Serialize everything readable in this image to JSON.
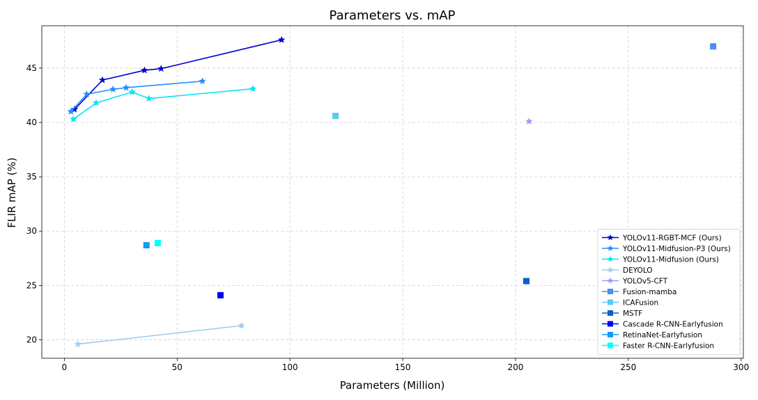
{
  "chart_data": {
    "type": "scatter",
    "title": "Parameters vs. mAP",
    "xlabel": "Parameters (Million)",
    "ylabel": "FLIR mAP (%)",
    "xlim": [
      -10,
      301
    ],
    "ylim": [
      18.3,
      48.9
    ],
    "xticks": [
      0,
      50,
      100,
      150,
      200,
      250,
      300
    ],
    "yticks": [
      20,
      25,
      30,
      35,
      40,
      45
    ],
    "grid": true,
    "legend_position": "lower-right",
    "series": [
      {
        "name": "YOLOv11-RGBT-MCF (Ours)",
        "color": "#0000cd",
        "marker": "star",
        "line": true,
        "x": [
          4.5,
          16.9,
          35.5,
          42.9,
          96.3
        ],
        "y": [
          41.2,
          43.9,
          44.8,
          44.95,
          47.6
        ]
      },
      {
        "name": "YOLOv11-Midfusion-P3 (Ours)",
        "color": "#1e90ff",
        "marker": "star",
        "line": true,
        "x": [
          2.9,
          9.9,
          21.6,
          27.4,
          61.2
        ],
        "y": [
          41.0,
          42.6,
          43.05,
          43.2,
          43.8
        ]
      },
      {
        "name": "YOLOv11-Midfusion (Ours)",
        "color": "#00e5ee",
        "marker": "star",
        "line": true,
        "x": [
          4.0,
          14.1,
          30.1,
          37.5,
          83.6
        ],
        "y": [
          40.3,
          41.8,
          42.8,
          42.2,
          43.1
        ]
      },
      {
        "name": "DEYOLO",
        "color": "#9ecbee",
        "marker": "star",
        "line": true,
        "x": [
          6.0,
          78.5
        ],
        "y": [
          19.6,
          21.3
        ]
      },
      {
        "name": "YOLOv5-CFT",
        "color": "#9a9aff",
        "marker": "star",
        "line": false,
        "x": [
          206.0
        ],
        "y": [
          40.1
        ]
      },
      {
        "name": "Fusion-mamba",
        "color": "#4b8ef5",
        "marker": "square",
        "line": false,
        "x": [
          287.6
        ],
        "y": [
          47.0
        ]
      },
      {
        "name": "ICAFusion",
        "color": "#5cc8f5",
        "marker": "square",
        "line": false,
        "x": [
          120.2
        ],
        "y": [
          40.6
        ]
      },
      {
        "name": "MSTF",
        "color": "#0a5fc7",
        "marker": "square",
        "line": false,
        "x": [
          204.8
        ],
        "y": [
          25.4
        ]
      },
      {
        "name": "Cascade R-CNN-Earlyfusion",
        "color": "#0000ee",
        "marker": "square",
        "line": false,
        "x": [
          69.2
        ],
        "y": [
          24.1
        ]
      },
      {
        "name": "RetinaNet-Earlyfusion",
        "color": "#129cf0",
        "marker": "square",
        "line": false,
        "x": [
          36.4
        ],
        "y": [
          28.7
        ]
      },
      {
        "name": "Faster R-CNN-Earlyfusion",
        "color": "#00ffff",
        "marker": "square",
        "line": false,
        "x": [
          41.4
        ],
        "y": [
          28.9
        ]
      }
    ]
  }
}
